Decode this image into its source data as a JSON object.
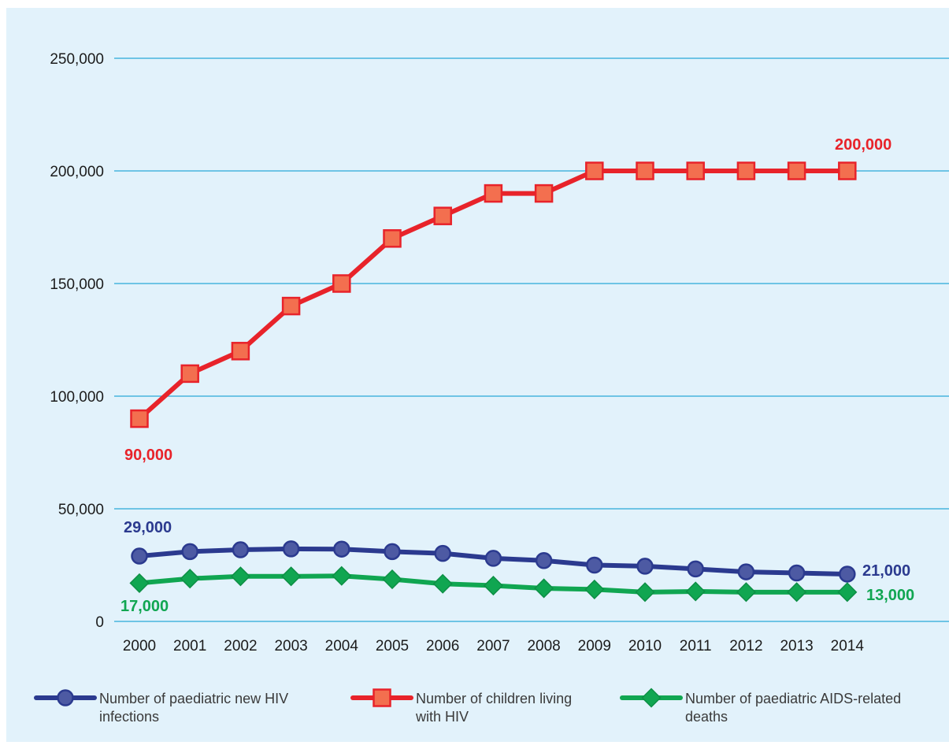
{
  "colors": {
    "background": "#e2f2fb",
    "gridline": "#29a9d8",
    "new_infections": "#2b3a8f",
    "living_with_hiv": "#e8232a",
    "living_marker_fill": "#f36f4f",
    "aids_deaths": "#10a651"
  },
  "chart_data": {
    "type": "line",
    "x": [
      "2000",
      "2001",
      "2002",
      "2003",
      "2004",
      "2005",
      "2006",
      "2007",
      "2008",
      "2009",
      "2010",
      "2011",
      "2012",
      "2013",
      "2014"
    ],
    "ylim": [
      0,
      250000
    ],
    "yticks": [
      0,
      50000,
      100000,
      150000,
      200000,
      250000
    ],
    "ytick_labels": [
      "0",
      "50,000",
      "100,000",
      "150,000",
      "200,000",
      "250,000"
    ],
    "grid": true,
    "legend_position": "bottom",
    "series": [
      {
        "key": "new_infections",
        "name": "Number of paediatric new HIV infections",
        "legend_lines": [
          "Number of paediatric new HIV",
          "infections"
        ],
        "marker": "circle-icon",
        "values": [
          29000,
          31000,
          31800,
          32200,
          32100,
          31000,
          30200,
          28000,
          27000,
          25000,
          24500,
          23300,
          22000,
          21500,
          21000
        ],
        "start_label": "29,000",
        "end_label": "21,000"
      },
      {
        "key": "living_with_hiv",
        "name": "Number of children living with HIV",
        "legend_lines": [
          "Number of children living",
          "with HIV"
        ],
        "marker": "square-icon",
        "values": [
          90000,
          110000,
          120000,
          140000,
          150000,
          170000,
          180000,
          190000,
          190000,
          200000,
          200000,
          200000,
          200000,
          200000,
          200000
        ],
        "start_label": "90,000",
        "end_label": "200,000"
      },
      {
        "key": "aids_deaths",
        "name": "Number of paediatric AIDS-related deaths",
        "legend_lines": [
          "Number of paediatric AIDS-related",
          "deaths"
        ],
        "marker": "diamond-icon",
        "values": [
          17000,
          19000,
          20000,
          20000,
          20200,
          18700,
          16700,
          15900,
          14700,
          14200,
          13000,
          13300,
          13000,
          13000,
          13000
        ],
        "start_label": "17,000",
        "end_label": "13,000"
      }
    ]
  }
}
